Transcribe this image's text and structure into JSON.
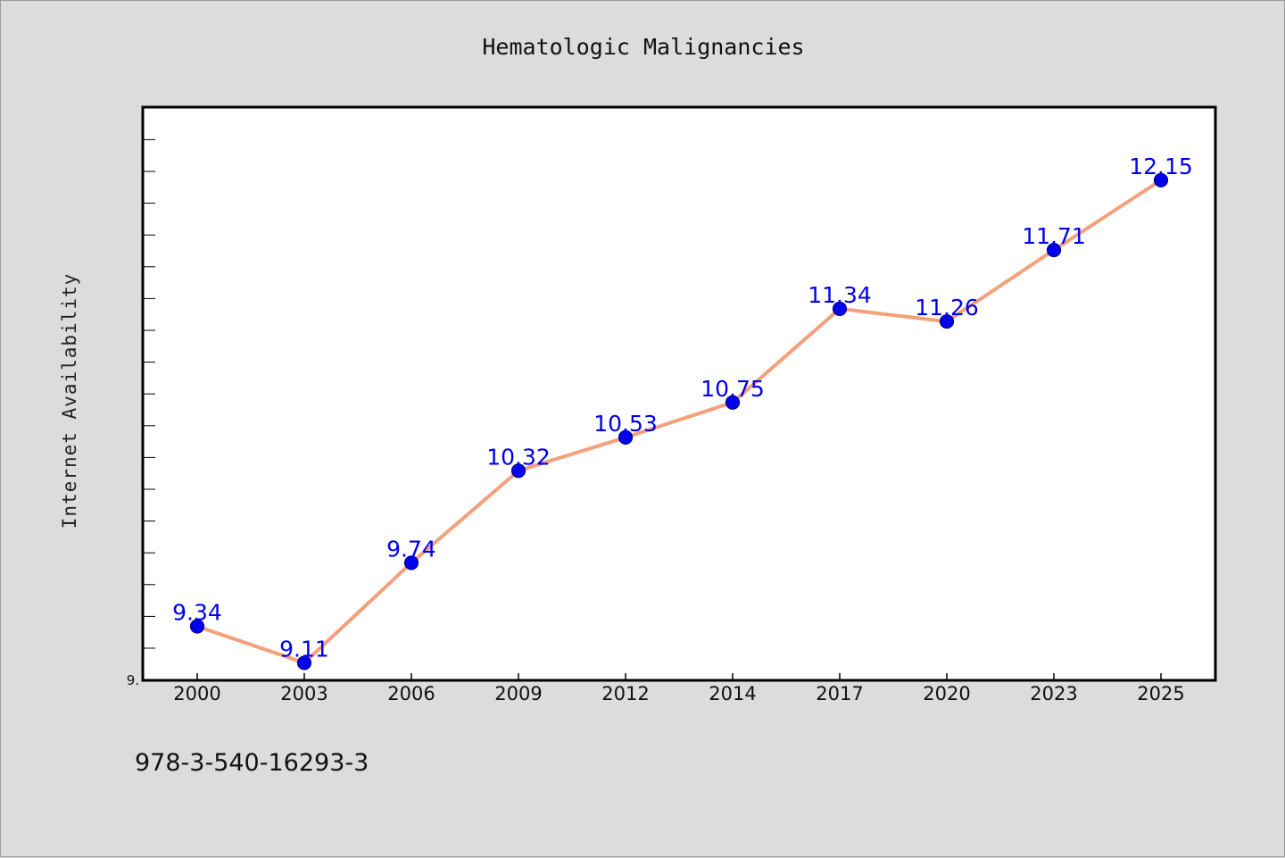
{
  "chart_data": {
    "type": "line",
    "title": "Hematologic Malignancies",
    "xlabel": "",
    "ylabel": "Internet Availability",
    "categories": [
      "2000",
      "2003",
      "2006",
      "2009",
      "2012",
      "2014",
      "2017",
      "2020",
      "2023",
      "2025"
    ],
    "series": [
      {
        "values": [
          9.34,
          9.11,
          9.74,
          10.32,
          10.53,
          10.75,
          11.34,
          11.26,
          11.71,
          12.15
        ],
        "data_labels": [
          "9.34",
          "9.11",
          "9.74",
          "10.32",
          "10.53",
          "10.75",
          "11.34",
          "11.26",
          "11.71",
          "12.15"
        ]
      }
    ],
    "y_tick_labels": [
      "9."
    ],
    "ylim": [
      9.0,
      12.61
    ],
    "grid": false,
    "legend": "none",
    "colors": {
      "line": "#f4a07a",
      "marker": "#0000ee",
      "marker_edge": "#00008b",
      "data_label": "#0000ee",
      "plot_background": "#ffffff",
      "figure_background": "#dcdcdc"
    }
  },
  "footer": {
    "isbn": "978-3-540-16293-3"
  }
}
